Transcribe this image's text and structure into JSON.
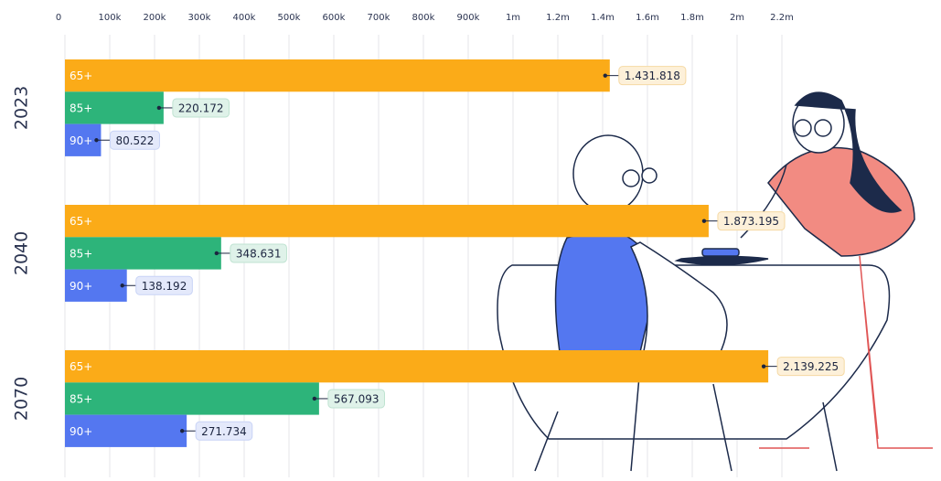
{
  "chart_data": {
    "type": "bar",
    "orientation": "horizontal",
    "categories": [
      "2023",
      "2040",
      "2070"
    ],
    "series": [
      {
        "name": "65+",
        "color": "#fbab18",
        "values": [
          1431818,
          1873195,
          2139225
        ],
        "value_labels": [
          "1.431.818",
          "1.873.195",
          "2.139.225"
        ]
      },
      {
        "name": "85+",
        "color": "#2db47a",
        "values": [
          220172,
          348631,
          567093
        ],
        "value_labels": [
          "220.172",
          "348.631",
          "567.093"
        ]
      },
      {
        "name": "90+",
        "color": "#5477f0",
        "values": [
          80522,
          138192,
          271734
        ],
        "value_labels": [
          "80.522",
          "138.192",
          "271.734"
        ]
      }
    ],
    "xlim": [
      0,
      2200000
    ],
    "xticks": [
      0,
      {
        "value": 100000,
        "label": "100k"
      },
      {
        "value": 200000,
        "label": "200k"
      },
      {
        "value": 300000,
        "label": "300k"
      },
      {
        "value": 400000,
        "label": "400k"
      },
      {
        "value": 500000,
        "label": "500k"
      },
      {
        "value": 600000,
        "label": "600k"
      },
      {
        "value": 700000,
        "label": "700k"
      },
      {
        "value": 800000,
        "label": "800k"
      },
      {
        "value": 900000,
        "label": "900k"
      },
      {
        "value": 1000000,
        "label": "1m"
      },
      {
        "value": 1200000,
        "label": "1.2m"
      },
      {
        "value": 1400000,
        "label": "1.4m"
      },
      {
        "value": 1600000,
        "label": "1.6m"
      },
      {
        "value": 1800000,
        "label": "1.8m"
      },
      {
        "value": 2000000,
        "label": "2m"
      },
      {
        "value": 2200000,
        "label": "2.2m"
      }
    ],
    "grid": true
  }
}
